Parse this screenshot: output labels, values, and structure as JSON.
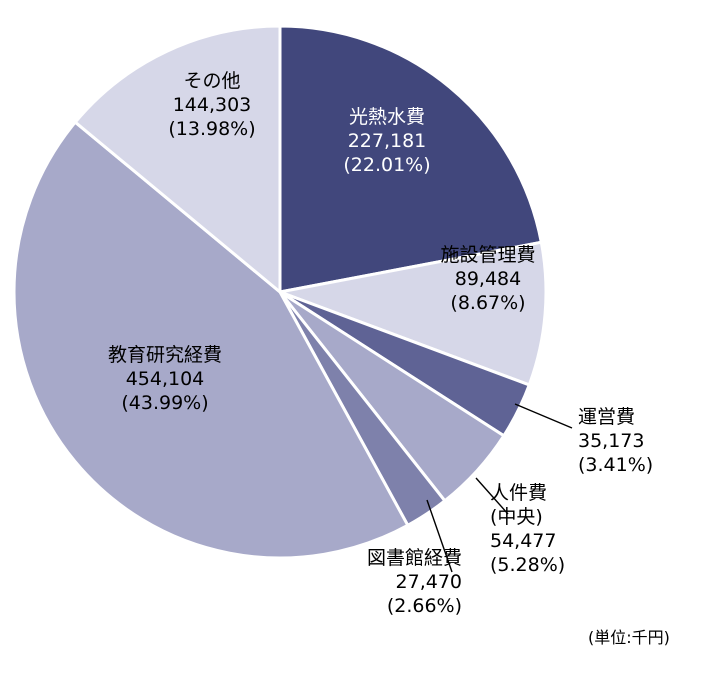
{
  "chart_data": {
    "type": "pie",
    "unit": "(単位:千円)",
    "slices": [
      {
        "name": "光熱水費",
        "value": 227181,
        "value_label": "227,181",
        "pct_label": "(22.01%)",
        "color": "#41477c",
        "text_color": "#ffffff"
      },
      {
        "name": "施設管理費",
        "value": 89484,
        "value_label": "89,484",
        "pct_label": "(8.67%)",
        "color": "#d6d7e8",
        "text_color": "#000000"
      },
      {
        "name": "運営費",
        "value": 35173,
        "value_label": "35,173",
        "pct_label": "(3.41%)",
        "color": "#5f6395",
        "text_color": "#000000"
      },
      {
        "name": "人件費",
        "subname": "(中央)",
        "value": 54477,
        "value_label": "54,477",
        "pct_label": "(5.28%)",
        "color": "#a7a9c9",
        "text_color": "#000000"
      },
      {
        "name": "図書館経費",
        "value": 27470,
        "value_label": "27,470",
        "pct_label": "(2.66%)",
        "color": "#7e81ab",
        "text_color": "#000000"
      },
      {
        "name": "教育研究経費",
        "value": 454104,
        "value_label": "454,104",
        "pct_label": "(43.99%)",
        "color": "#a7a9c9",
        "text_color": "#000000"
      },
      {
        "name": "その他",
        "value": 144303,
        "value_label": "144,303",
        "pct_label": "(13.98%)",
        "color": "#d6d7e8",
        "text_color": "#000000"
      }
    ]
  }
}
